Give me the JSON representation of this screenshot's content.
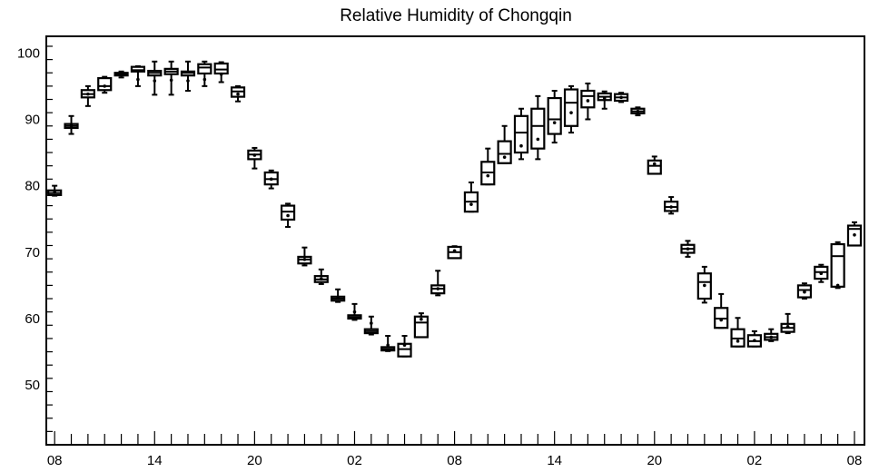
{
  "chart_data": {
    "type": "box",
    "title": "Relative Humidity of Chongqin",
    "xlabel": "",
    "ylabel": "",
    "x_tick_labels": [
      "08",
      "14",
      "20",
      "02",
      "08",
      "14",
      "20",
      "02",
      "08"
    ],
    "x_tick_label_hours": [
      0,
      6,
      12,
      18,
      24,
      30,
      36,
      42,
      48
    ],
    "y_ticks": [
      50,
      60,
      70,
      80,
      90,
      100
    ],
    "ylim": [
      41,
      102.5
    ],
    "xlim": [
      -0.5,
      48.6
    ],
    "grid": false,
    "legend": "none",
    "boxes": [
      {
        "hour": 0,
        "q1": 78.6,
        "median": 78.9,
        "q3": 79.3,
        "whisker_low": 78.5,
        "whisker_high": 80.0,
        "mean": 79.0
      },
      {
        "hour": 1,
        "q1": 88.7,
        "median": 89.0,
        "q3": 89.3,
        "whisker_low": 87.8,
        "whisker_high": 90.5,
        "mean": 89.0
      },
      {
        "hour": 2,
        "q1": 93.3,
        "median": 93.8,
        "q3": 94.4,
        "whisker_low": 92.0,
        "whisker_high": 95.0,
        "mean": 93.8
      },
      {
        "hour": 3,
        "q1": 94.4,
        "median": 95.0,
        "q3": 96.2,
        "whisker_low": 94.0,
        "whisker_high": 96.4,
        "mean": 95.0
      },
      {
        "hour": 4,
        "q1": 96.6,
        "median": 96.8,
        "q3": 97.0,
        "whisker_low": 96.3,
        "whisker_high": 97.2,
        "mean": 96.8
      },
      {
        "hour": 5,
        "q1": 97.2,
        "median": 97.4,
        "q3": 97.9,
        "whisker_low": 95.0,
        "whisker_high": 98.0,
        "mean": 96.0
      },
      {
        "hour": 6,
        "q1": 96.6,
        "median": 97.0,
        "q3": 97.3,
        "whisker_low": 93.7,
        "whisker_high": 98.7,
        "mean": 95.8
      },
      {
        "hour": 7,
        "q1": 96.8,
        "median": 97.2,
        "q3": 97.6,
        "whisker_low": 93.7,
        "whisker_high": 98.7,
        "mean": 95.9
      },
      {
        "hour": 8,
        "q1": 96.6,
        "median": 97.0,
        "q3": 97.2,
        "whisker_low": 94.3,
        "whisker_high": 98.7,
        "mean": 95.8
      },
      {
        "hour": 9,
        "q1": 96.9,
        "median": 97.8,
        "q3": 98.3,
        "whisker_low": 95.0,
        "whisker_high": 98.7,
        "mean": 96.0
      },
      {
        "hour": 10,
        "q1": 96.9,
        "median": 97.5,
        "q3": 98.4,
        "whisker_low": 95.6,
        "whisker_high": 98.6,
        "mean": 96.8
      },
      {
        "hour": 11,
        "q1": 93.4,
        "median": 94.2,
        "q3": 94.8,
        "whisker_low": 92.7,
        "whisker_high": 95.0,
        "mean": 93.8
      },
      {
        "hour": 12,
        "q1": 84.0,
        "median": 84.7,
        "q3": 85.3,
        "whisker_low": 82.6,
        "whisker_high": 85.7,
        "mean": 84.6
      },
      {
        "hour": 13,
        "q1": 80.2,
        "median": 81.0,
        "q3": 82.0,
        "whisker_low": 79.6,
        "whisker_high": 82.3,
        "mean": 81.0
      },
      {
        "hour": 14,
        "q1": 74.9,
        "median": 76.1,
        "q3": 77.0,
        "whisker_low": 73.8,
        "whisker_high": 77.3,
        "mean": 75.5
      },
      {
        "hour": 15,
        "q1": 68.3,
        "median": 68.9,
        "q3": 69.3,
        "whisker_low": 68.0,
        "whisker_high": 70.7,
        "mean": 68.9
      },
      {
        "hour": 16,
        "q1": 65.5,
        "median": 65.9,
        "q3": 66.4,
        "whisker_low": 65.2,
        "whisker_high": 67.4,
        "mean": 66.0
      },
      {
        "hour": 17,
        "q1": 62.7,
        "median": 63.0,
        "q3": 63.3,
        "whisker_low": 62.5,
        "whisker_high": 64.4,
        "mean": 63.1
      },
      {
        "hour": 18,
        "q1": 60.0,
        "median": 60.2,
        "q3": 60.5,
        "whisker_low": 59.8,
        "whisker_high": 62.2,
        "mean": 61.0
      },
      {
        "hour": 19,
        "q1": 57.8,
        "median": 58.1,
        "q3": 58.4,
        "whisker_low": 57.6,
        "whisker_high": 60.3,
        "mean": 59.3
      },
      {
        "hour": 20,
        "q1": 55.2,
        "median": 55.4,
        "q3": 55.7,
        "whisker_low": 55.1,
        "whisker_high": 57.4,
        "mean": 56.0
      },
      {
        "hour": 21,
        "q1": 54.3,
        "median": 55.4,
        "q3": 56.2,
        "whisker_low": 54.3,
        "whisker_high": 57.4,
        "mean": 56.0
      },
      {
        "hour": 22,
        "q1": 57.2,
        "median": 59.4,
        "q3": 60.3,
        "whisker_low": 57.2,
        "whisker_high": 60.8,
        "mean": 59.9
      },
      {
        "hour": 23,
        "q1": 63.8,
        "median": 64.5,
        "q3": 65.0,
        "whisker_low": 63.5,
        "whisker_high": 67.2,
        "mean": 64.5
      },
      {
        "hour": 24,
        "q1": 69.1,
        "median": 70.0,
        "q3": 70.8,
        "whisker_low": 69.1,
        "whisker_high": 70.9,
        "mean": 70.2
      },
      {
        "hour": 25,
        "q1": 76.1,
        "median": 77.6,
        "q3": 79.0,
        "whisker_low": 76.1,
        "whisker_high": 80.5,
        "mean": 77.2
      },
      {
        "hour": 26,
        "q1": 80.2,
        "median": 82.0,
        "q3": 83.6,
        "whisker_low": 80.2,
        "whisker_high": 85.6,
        "mean": 81.5
      },
      {
        "hour": 27,
        "q1": 83.4,
        "median": 84.8,
        "q3": 86.7,
        "whisker_low": 83.4,
        "whisker_high": 89.0,
        "mean": 84.3
      },
      {
        "hour": 28,
        "q1": 85.0,
        "median": 88.0,
        "q3": 90.5,
        "whisker_low": 84.0,
        "whisker_high": 91.6,
        "mean": 86.0
      },
      {
        "hour": 29,
        "q1": 85.6,
        "median": 89.0,
        "q3": 91.6,
        "whisker_low": 84.0,
        "whisker_high": 93.5,
        "mean": 87.0
      },
      {
        "hour": 30,
        "q1": 87.8,
        "median": 90.0,
        "q3": 93.2,
        "whisker_low": 86.5,
        "whisker_high": 94.3,
        "mean": 89.5
      },
      {
        "hour": 31,
        "q1": 89.0,
        "median": 92.5,
        "q3": 94.5,
        "whisker_low": 88.0,
        "whisker_high": 95.0,
        "mean": 91.0
      },
      {
        "hour": 32,
        "q1": 91.8,
        "median": 93.5,
        "q3": 94.3,
        "whisker_low": 90.0,
        "whisker_high": 95.4,
        "mean": 92.8
      },
      {
        "hour": 33,
        "q1": 92.9,
        "median": 93.4,
        "q3": 93.9,
        "whisker_low": 91.6,
        "whisker_high": 94.2,
        "mean": 93.2
      },
      {
        "hour": 34,
        "q1": 92.8,
        "median": 93.3,
        "q3": 93.8,
        "whisker_low": 92.6,
        "whisker_high": 94.0,
        "mean": 93.3
      },
      {
        "hour": 35,
        "q1": 90.9,
        "median": 91.2,
        "q3": 91.6,
        "whisker_low": 90.6,
        "whisker_high": 91.8,
        "mean": 91.2
      },
      {
        "hour": 36,
        "q1": 81.8,
        "median": 83.0,
        "q3": 83.8,
        "whisker_low": 81.8,
        "whisker_high": 84.4,
        "mean": 83.3
      },
      {
        "hour": 37,
        "q1": 76.2,
        "median": 76.8,
        "q3": 77.6,
        "whisker_low": 75.8,
        "whisker_high": 78.3,
        "mean": 76.8
      },
      {
        "hour": 38,
        "q1": 69.9,
        "median": 70.5,
        "q3": 71.1,
        "whisker_low": 69.3,
        "whisker_high": 71.7,
        "mean": 70.5
      },
      {
        "hour": 39,
        "q1": 63.0,
        "median": 65.5,
        "q3": 66.8,
        "whisker_low": 62.4,
        "whisker_high": 67.8,
        "mean": 65.0
      },
      {
        "hour": 40,
        "q1": 58.6,
        "median": 60.0,
        "q3": 61.6,
        "whisker_low": 58.6,
        "whisker_high": 63.7,
        "mean": 59.8
      },
      {
        "hour": 41,
        "q1": 55.8,
        "median": 57.0,
        "q3": 58.4,
        "whisker_low": 55.8,
        "whisker_high": 60.1,
        "mean": 56.6
      },
      {
        "hour": 42,
        "q1": 55.8,
        "median": 56.6,
        "q3": 57.5,
        "whisker_low": 55.8,
        "whisker_high": 58.1,
        "mean": 56.7
      },
      {
        "hour": 43,
        "q1": 56.8,
        "median": 57.2,
        "q3": 57.7,
        "whisker_low": 56.6,
        "whisker_high": 58.4,
        "mean": 57.2
      },
      {
        "hour": 44,
        "q1": 58.0,
        "median": 58.6,
        "q3": 59.2,
        "whisker_low": 57.8,
        "whisker_high": 60.7,
        "mean": 58.8
      },
      {
        "hour": 45,
        "q1": 63.2,
        "median": 64.3,
        "q3": 65.0,
        "whisker_low": 63.0,
        "whisker_high": 65.3,
        "mean": 64.0
      },
      {
        "hour": 46,
        "q1": 66.0,
        "median": 67.0,
        "q3": 67.8,
        "whisker_low": 65.5,
        "whisker_high": 68.1,
        "mean": 66.8
      },
      {
        "hour": 47,
        "q1": 64.8,
        "median": 69.4,
        "q3": 71.2,
        "whisker_low": 64.6,
        "whisker_high": 71.5,
        "mean": 65.0
      },
      {
        "hour": 48,
        "q1": 71.0,
        "median": 73.5,
        "q3": 74.0,
        "whisker_low": 71.0,
        "whisker_high": 74.5,
        "mean": 72.6
      }
    ]
  }
}
